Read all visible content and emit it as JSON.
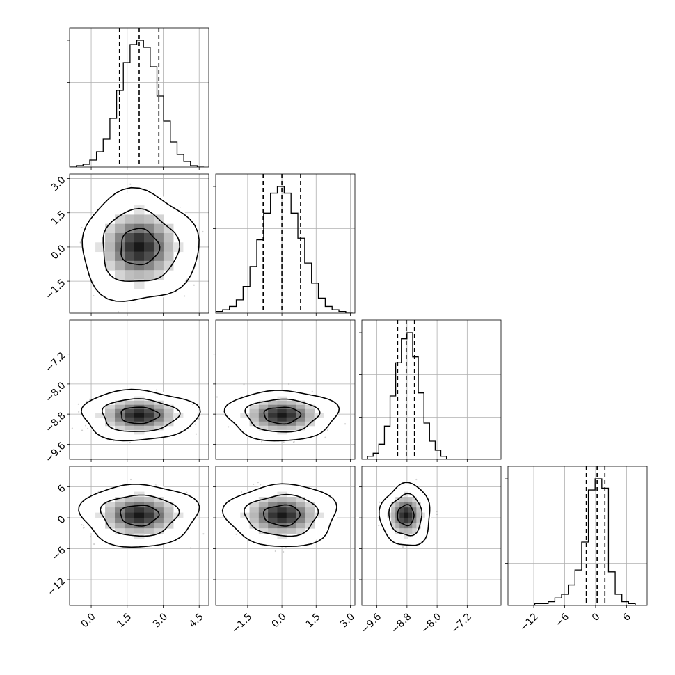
{
  "chart_data": {
    "type": "corner",
    "n_params": 4,
    "grid": true,
    "params": [
      {
        "index": 0,
        "range": [
          -0.9,
          4.9
        ],
        "ticks": [
          0.0,
          1.5,
          3.0,
          4.5
        ],
        "tick_labels": [
          "0.0",
          "1.5",
          "3.0",
          "4.5"
        ],
        "quantiles": [
          1.18,
          2.0,
          2.82
        ],
        "sigma": 0.8,
        "mean": 2.0
      },
      {
        "index": 1,
        "range": [
          -2.9,
          3.2
        ],
        "ticks": [
          -1.5,
          0.0,
          1.5,
          3.0
        ],
        "tick_labels": [
          "−1.5",
          "0.0",
          "1.5",
          "3.0"
        ],
        "quantiles": [
          -0.82,
          0.0,
          0.82
        ],
        "sigma": 0.8,
        "mean": 0.0
      },
      {
        "index": 2,
        "range": [
          -10.0,
          -6.3
        ],
        "ticks": [
          -9.6,
          -8.8,
          -8.0,
          -7.2
        ],
        "tick_labels": [
          "−9.6",
          "−8.8",
          "−8.0",
          "−7.2"
        ],
        "quantiles": [
          -9.05,
          -8.82,
          -8.6
        ],
        "sigma": 0.22,
        "mean": -8.83
      },
      {
        "index": 3,
        "range": [
          -17.0,
          10.0
        ],
        "ticks": [
          -12,
          -6,
          0,
          6
        ],
        "tick_labels": [
          "−12",
          "−6",
          "0",
          "6"
        ],
        "quantiles": [
          -1.8,
          0.3,
          1.8
        ],
        "sigma": 2.0,
        "mean": 0.5
      }
    ],
    "histograms": [
      {
        "param": 0,
        "bin_edges": [
          -0.9,
          -0.62,
          -0.34,
          -0.06,
          0.22,
          0.5,
          0.78,
          1.06,
          1.34,
          1.62,
          1.9,
          2.18,
          2.46,
          2.74,
          3.02,
          3.3,
          3.58,
          3.86,
          4.14,
          4.42,
          4.7
        ],
        "counts": [
          0,
          1,
          2,
          5,
          11,
          20,
          35,
          55,
          75,
          88,
          91,
          86,
          72,
          51,
          33,
          18,
          9,
          4,
          1,
          0
        ]
      },
      {
        "param": 1,
        "bin_edges": [
          -2.9,
          -2.6,
          -2.3,
          -2.0,
          -1.7,
          -1.4,
          -1.1,
          -0.8,
          -0.5,
          -0.2,
          0.1,
          0.4,
          0.7,
          1.0,
          1.3,
          1.6,
          1.9,
          2.2,
          2.5,
          2.8,
          3.1
        ],
        "counts": [
          1,
          2,
          4,
          8,
          16,
          28,
          44,
          60,
          72,
          76,
          72,
          60,
          45,
          30,
          18,
          9,
          4,
          2,
          1,
          0
        ]
      },
      {
        "param": 2,
        "bin_edges": [
          -10.0,
          -9.85,
          -9.7,
          -9.55,
          -9.4,
          -9.25,
          -9.1,
          -8.95,
          -8.8,
          -8.65,
          -8.5,
          -8.35,
          -8.2,
          -8.05,
          -7.9,
          -7.75,
          -7.6,
          -7.45,
          -7.3,
          -7.15,
          -7.0
        ],
        "counts": [
          0,
          1,
          2,
          5,
          11,
          21,
          32,
          40,
          42,
          34,
          22,
          12,
          6,
          3,
          1,
          0,
          0,
          0,
          0,
          0
        ]
      },
      {
        "param": 3,
        "bin_edges": [
          -17.0,
          -15.7,
          -14.4,
          -13.1,
          -11.8,
          -10.5,
          -9.2,
          -7.9,
          -6.6,
          -5.3,
          -4.0,
          -2.7,
          -1.4,
          -0.1,
          1.2,
          2.5,
          3.8,
          5.1,
          6.4,
          7.7,
          9.0
        ],
        "counts": [
          0,
          0,
          0,
          0,
          1,
          1,
          2,
          4,
          6,
          11,
          19,
          34,
          62,
          68,
          63,
          18,
          6,
          2,
          1,
          0
        ]
      }
    ],
    "contour_levels": [
      0.39,
      0.86,
      0.99
    ]
  }
}
